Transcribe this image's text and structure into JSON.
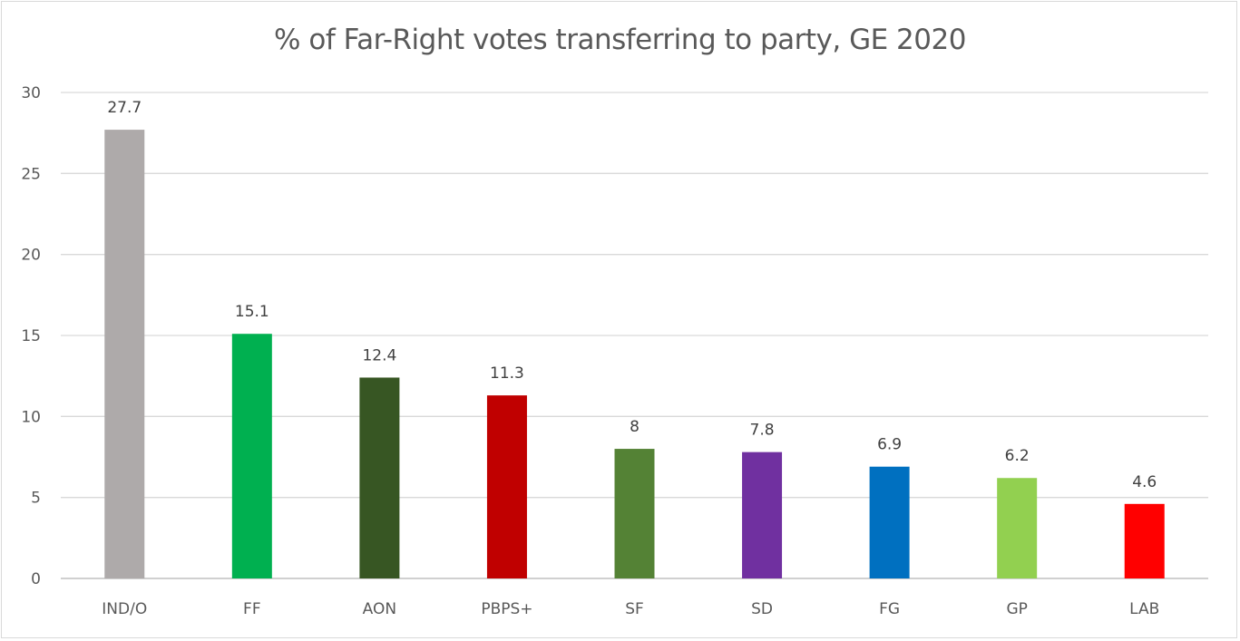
{
  "chart_data": {
    "type": "bar",
    "title": "% of Far-Right votes transferring to party, GE 2020",
    "xlabel": "",
    "ylabel": "",
    "categories": [
      "IND/O",
      "FF",
      "AON",
      "PBPS+",
      "SF",
      "SD",
      "FG",
      "GP",
      "LAB"
    ],
    "values": [
      27.7,
      15.1,
      12.4,
      11.3,
      8,
      7.8,
      6.9,
      6.2,
      4.6
    ],
    "data_labels": [
      "27.7",
      "15.1",
      "12.4",
      "11.3",
      "8",
      "7.8",
      "6.9",
      "6.2",
      "4.6"
    ],
    "colors": [
      "#aeaaaa",
      "#00b050",
      "#375623",
      "#c00000",
      "#548235",
      "#7030a0",
      "#0070c0",
      "#92d050",
      "#ff0000"
    ],
    "ylim": [
      0,
      30
    ],
    "yticks": [
      "0",
      "5",
      "10",
      "15",
      "20",
      "25",
      "30"
    ],
    "grid": true,
    "legend": "none"
  }
}
